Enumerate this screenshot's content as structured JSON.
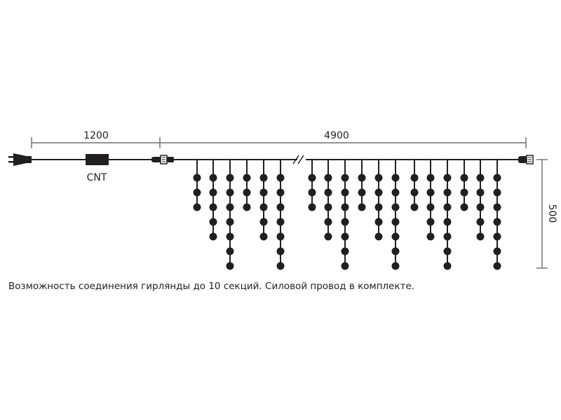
{
  "dimensions": {
    "power_cord_length": "1200",
    "garland_length": "4900",
    "drop_height": "500"
  },
  "controller_label": "CNT",
  "strands": {
    "left_group_dot_counts": [
      3,
      5,
      7,
      3,
      5,
      7
    ],
    "right_group_dot_counts": [
      3,
      5,
      7,
      3,
      5,
      7,
      3,
      5,
      7,
      3,
      5,
      7
    ]
  },
  "caption": "Возможность соединения гирлянды до 10 секций. Силовой провод в комплекте.",
  "colors": {
    "line": "#231f20",
    "dimension": "#555555"
  }
}
